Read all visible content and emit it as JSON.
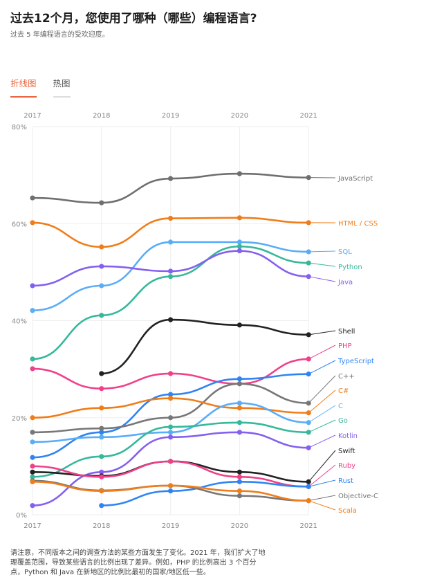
{
  "header": {
    "title": "过去12个月，您使用了哪种（哪些）编程语言?",
    "subtitle": "过去 5 年编程语言的受欢迎度。"
  },
  "tabs": [
    {
      "label": "折线图",
      "active": true
    },
    {
      "label": "热图",
      "active": false
    }
  ],
  "chart_data": {
    "type": "line",
    "x": [
      "2017",
      "2018",
      "2019",
      "2020",
      "2021"
    ],
    "ylim": [
      0,
      80
    ],
    "yticks": [
      "0%",
      "20%",
      "40%",
      "60%",
      "80%"
    ],
    "grid": true,
    "legend": "right (inline labels)",
    "series": [
      {
        "name": "JavaScript",
        "color": "#6f6f6f",
        "values": [
          65.3,
          64.3,
          69.3,
          70.3,
          69.5
        ]
      },
      {
        "name": "HTML / CSS",
        "color": "#f07d1a",
        "values": [
          60.2,
          55.2,
          61.1,
          61.2,
          60.2
        ]
      },
      {
        "name": "SQL",
        "color": "#5aadf7",
        "values": [
          42.1,
          47.2,
          56.2,
          56.2,
          54.2
        ]
      },
      {
        "name": "Python",
        "color": "#36b89a",
        "values": [
          32.1,
          41.1,
          49.1,
          55.3,
          51.9
        ]
      },
      {
        "name": "Java",
        "color": "#8460f0",
        "values": [
          47.2,
          51.2,
          50.2,
          54.4,
          49.1
        ]
      },
      {
        "name": "Shell",
        "color": "#222222",
        "values": [
          null,
          29.1,
          40.2,
          39.1,
          37.1
        ]
      },
      {
        "name": "PHP",
        "color": "#f0408a",
        "values": [
          30.1,
          26,
          29.1,
          27,
          32.1
        ]
      },
      {
        "name": "TypeScript",
        "color": "#2f84f2",
        "values": [
          11.8,
          17,
          24.8,
          28,
          29
        ]
      },
      {
        "name": "C++",
        "color": "#777777",
        "values": [
          17,
          17.8,
          20,
          27,
          23
        ]
      },
      {
        "name": "C#",
        "color": "#f07d1a",
        "values": [
          20,
          22,
          24,
          22,
          21
        ]
      },
      {
        "name": "C",
        "color": "#5aadf7",
        "values": [
          15,
          16,
          17,
          23,
          19
        ]
      },
      {
        "name": "Go",
        "color": "#36b89a",
        "values": [
          7.8,
          12,
          18.1,
          19,
          17
        ]
      },
      {
        "name": "Kotlin",
        "color": "#8460f0",
        "values": [
          1.9,
          8.8,
          16,
          17,
          13.8
        ]
      },
      {
        "name": "Swift",
        "color": "#222222",
        "values": [
          8.8,
          8,
          11,
          8.8,
          6.8
        ]
      },
      {
        "name": "Ruby",
        "color": "#f0408a",
        "values": [
          10,
          7.8,
          11,
          7.8,
          5.8
        ]
      },
      {
        "name": "Rust",
        "color": "#2f84f2",
        "values": [
          null,
          1.9,
          4.9,
          6.8,
          5.8
        ]
      },
      {
        "name": "Objective-C",
        "color": "#777777",
        "values": [
          7,
          5,
          6,
          3.9,
          2.9
        ]
      },
      {
        "name": "Scala",
        "color": "#f07d1a",
        "values": [
          6.8,
          4.9,
          6,
          4.9,
          2.9
        ]
      }
    ]
  },
  "note": "请注意，不同版本之间的调查方法的某些方面发生了变化。2021 年，我们扩大了地理覆盖范围，导致某些语言的比例出现了差异。例如，PHP 的比例高出 3 个百分点，Python 和 Java 在新地区的比例比最初的国家/地区低一些。"
}
